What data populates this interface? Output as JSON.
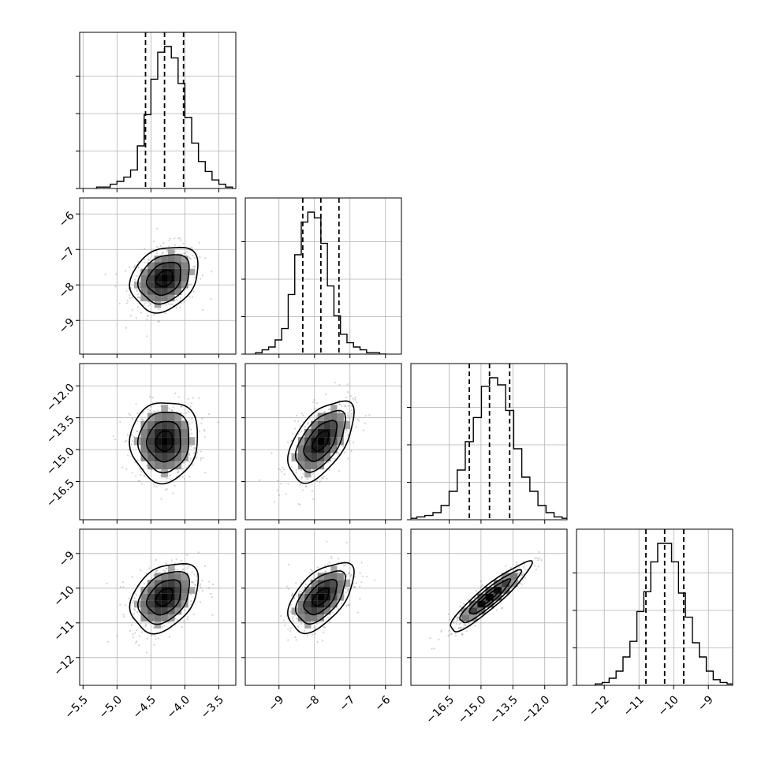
{
  "chart_data": {
    "type": "scatter",
    "title": "",
    "parameters": [
      {
        "range": [
          -5.55,
          -3.25
        ],
        "ticks": [
          -5.5,
          -5.0,
          -4.5,
          -4.0,
          -3.5
        ],
        "tick_labels": [
          "−5.5",
          "−5.0",
          "−4.5",
          "−4.0",
          "−3.5"
        ],
        "mean": -4.3,
        "sd": 0.25,
        "quantiles": [
          -4.58,
          -4.3,
          -4.02
        ]
      },
      {
        "range": [
          -9.95,
          -5.55
        ],
        "ticks": [
          -9,
          -8,
          -7,
          -6
        ],
        "tick_labels": [
          "−9",
          "−8",
          "−7",
          "−6"
        ],
        "mean": -7.82,
        "sd": 0.46,
        "quantiles": [
          -8.33,
          -7.82,
          -7.31
        ]
      },
      {
        "range": [
          -18.3,
          -10.95
        ],
        "ticks": [
          -16.5,
          -15.0,
          -13.5,
          -12.0
        ],
        "tick_labels": [
          "−16.5",
          "−15.0",
          "−13.5",
          "−12.0"
        ],
        "mean": -14.6,
        "sd": 0.95,
        "quantiles": [
          -15.55,
          -14.6,
          -13.65
        ]
      },
      {
        "range": [
          -12.8,
          -8.3
        ],
        "ticks": [
          -12,
          -11,
          -10,
          -9
        ],
        "tick_labels": [
          "−12",
          "−11",
          "−10",
          "−9"
        ],
        "mean": -10.26,
        "sd": 0.5,
        "quantiles": [
          -10.8,
          -10.26,
          -9.71
        ]
      }
    ],
    "histograms": [
      [
        0.01,
        0.01,
        0.03,
        0.05,
        0.08,
        0.13,
        0.3,
        0.52,
        0.77,
        0.96,
        1.0,
        0.92,
        0.74,
        0.5,
        0.32,
        0.19,
        0.12,
        0.06,
        0.03,
        0.01
      ],
      [
        0.01,
        0.03,
        0.05,
        0.1,
        0.18,
        0.42,
        0.7,
        0.93,
        1.0,
        0.96,
        0.78,
        0.48,
        0.27,
        0.14,
        0.08,
        0.05,
        0.03,
        0.01,
        0.01,
        0.0
      ],
      [
        0.01,
        0.02,
        0.03,
        0.05,
        0.1,
        0.2,
        0.35,
        0.55,
        0.72,
        0.94,
        1.0,
        0.95,
        0.77,
        0.5,
        0.3,
        0.2,
        0.1,
        0.05,
        0.02,
        0.01
      ],
      [
        0.01,
        0.02,
        0.05,
        0.1,
        0.2,
        0.31,
        0.52,
        0.66,
        0.87,
        1.0,
        1.0,
        0.87,
        0.65,
        0.48,
        0.3,
        0.2,
        0.1,
        0.04,
        0.02,
        0.01
      ]
    ],
    "correlations": {
      "1-0": 0.25,
      "2-0": 0.05,
      "2-1": 0.55,
      "3-0": 0.35,
      "3-1": 0.55,
      "3-2": 0.92
    },
    "contour_levels": [
      0.5,
      1.0,
      1.5,
      2.0
    ],
    "scatter_points_per_panel": 500,
    "colors": {
      "points": "#808080",
      "lines": "#000000",
      "grid": "#b0b0b0",
      "density_low": "#e6e6e6",
      "density_high": "#000000"
    },
    "grid": true
  }
}
